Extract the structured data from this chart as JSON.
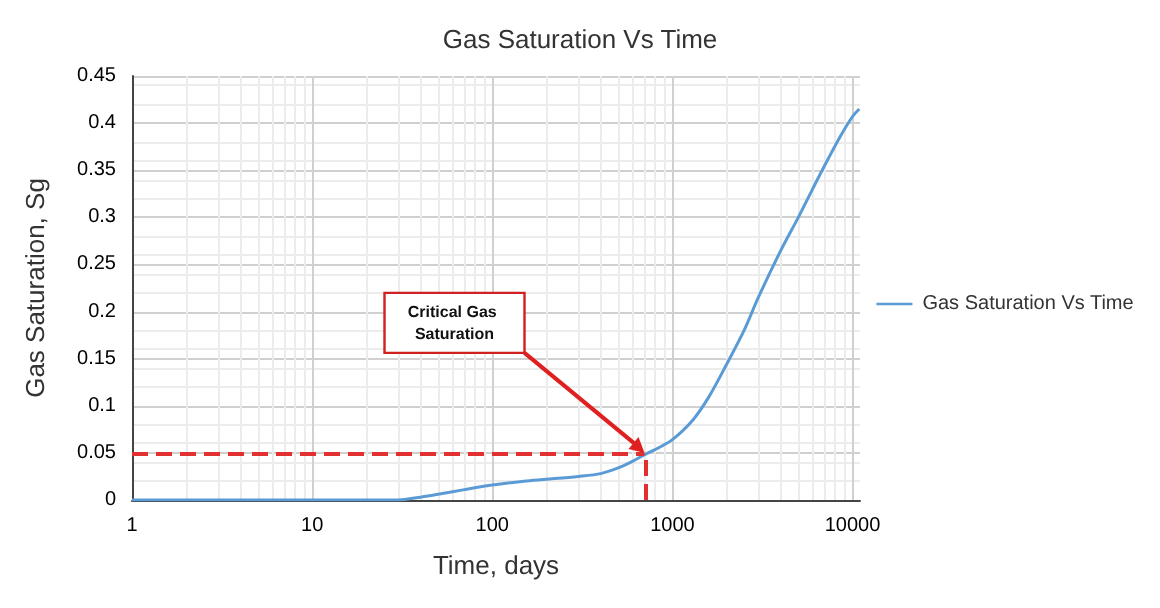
{
  "chart_data": {
    "type": "line",
    "title": "Gas Saturation Vs Time",
    "xlabel": "Time, days",
    "ylabel": "Gas Saturation, Sg",
    "log": "x",
    "xlim": [
      1,
      11000
    ],
    "xticks": [
      1,
      10,
      100,
      1000,
      10000
    ],
    "ylim": [
      0,
      0.45
    ],
    "yticks": [
      0,
      0.05,
      0.1,
      0.15,
      0.2,
      0.25,
      0.3,
      0.35,
      0.4,
      0.45
    ],
    "grid": true,
    "legend": "right",
    "marker": "none",
    "line_style": "solid",
    "series": [
      {
        "name": "Gas Saturation Vs Time",
        "color": "#5b9bd5",
        "x": [
          1,
          5,
          10,
          20,
          30,
          40,
          50,
          70,
          100,
          150,
          200,
          300,
          400,
          500,
          600,
          700,
          850,
          1000,
          1300,
          1600,
          2000,
          2500,
          3000,
          4000,
          5000,
          6000,
          7000,
          8500,
          10000,
          10900
        ],
        "values": [
          0,
          0,
          0,
          0,
          0,
          0.003,
          0.006,
          0.011,
          0.016,
          0.02,
          0.022,
          0.025,
          0.028,
          0.034,
          0.041,
          0.048,
          0.056,
          0.064,
          0.085,
          0.11,
          0.144,
          0.18,
          0.215,
          0.265,
          0.3,
          0.33,
          0.355,
          0.385,
          0.407,
          0.415
        ]
      }
    ],
    "ref_lines": [
      {
        "axis": "y",
        "value": 0.05,
        "color": "#e03030",
        "line_style": "dashed"
      },
      {
        "axis": "x",
        "value": 700,
        "color": "#e03030",
        "line_style": "dashed"
      }
    ],
    "annotations": [
      "Critical Gas Saturation"
    ]
  }
}
